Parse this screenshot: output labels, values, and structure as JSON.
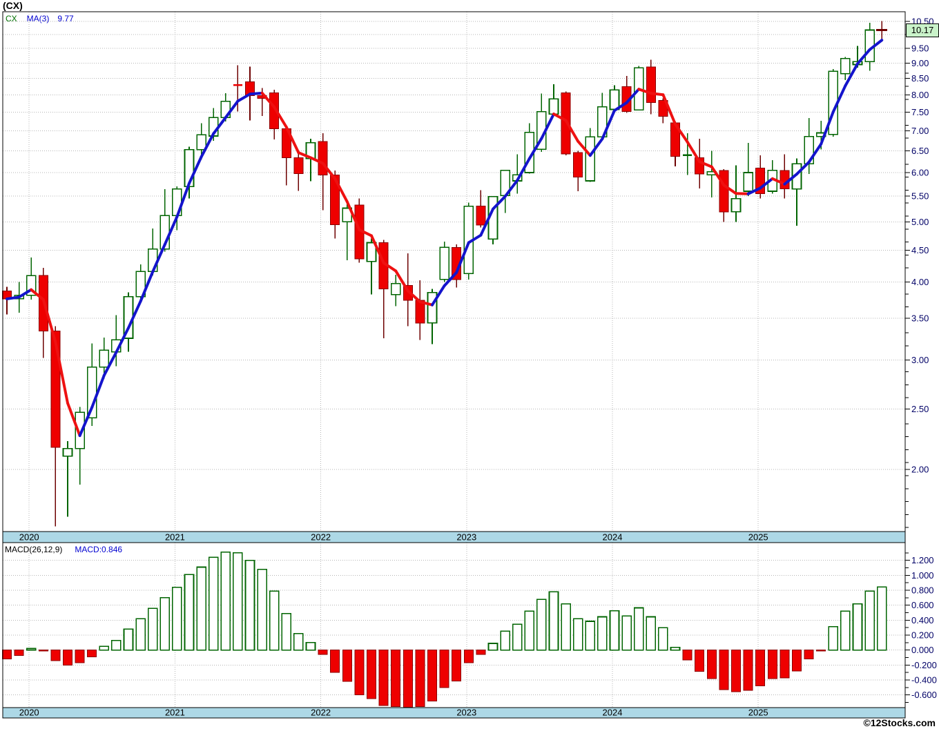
{
  "window": {
    "title": "(CX)"
  },
  "legend": {
    "symbol": "CX",
    "ma_label": "MA(3)",
    "ma_value": "9.77"
  },
  "macd_legend": {
    "label": "MACD(26,12,9)",
    "value_label": "MACD:0.846"
  },
  "price_badge": "10.17",
  "footer": "©12Stocks.com",
  "colors": {
    "up_stroke": "#006400",
    "up_fill": "#ffffff",
    "down_fill": "#ee0000",
    "down_stroke": "#8b0000",
    "down_wick": "#6e0000",
    "ma_up": "#1414cc",
    "ma_down": "#ee1111",
    "grid": "#b4b4b4",
    "border": "#000000",
    "band_fill": "#add8e6",
    "axis_text": "#000066",
    "year_text": "#000000",
    "badge_bg": "#c9f2c9",
    "cross": "#6e0000"
  },
  "chart_data": {
    "type": "candlestick",
    "symbol": "CX",
    "title": "(CX)",
    "ma_period": 3,
    "ma_last": 9.77,
    "macd_params": "26,12,9",
    "macd_last": 0.846,
    "price_axis": {
      "scale": "log",
      "label_min": 2.0,
      "label_max": 10.5,
      "step": 0.5,
      "last_price": 10.17
    },
    "macd_axis": {
      "scale": "linear",
      "label_min": -0.6,
      "label_max": 1.2,
      "step": 0.2,
      "minor_step": 0.1
    },
    "x_axis": {
      "years": [
        {
          "label": "2020",
          "month_index": 2
        },
        {
          "label": "2021",
          "month_index": 14
        },
        {
          "label": "2022",
          "month_index": 26
        },
        {
          "label": "2023",
          "month_index": 38
        },
        {
          "label": "2024",
          "month_index": 50
        },
        {
          "label": "2025",
          "month_index": 62
        }
      ]
    },
    "partial_last": true,
    "columns": [
      "month",
      "open",
      "high",
      "low",
      "close",
      "macd"
    ],
    "candles": [
      [
        "2019-11",
        3.87,
        3.93,
        3.55,
        3.76,
        -0.12
      ],
      [
        "2019-12",
        3.76,
        4.0,
        3.57,
        3.81,
        -0.07
      ],
      [
        "2020-01",
        3.81,
        4.38,
        3.75,
        4.1,
        0.02
      ],
      [
        "2020-02",
        4.1,
        4.22,
        3.02,
        3.34,
        -0.01
      ],
      [
        "2020-03",
        3.34,
        3.4,
        1.62,
        2.17,
        -0.14
      ],
      [
        "2020-04",
        2.1,
        2.22,
        1.68,
        2.16,
        -0.2
      ],
      [
        "2020-05",
        2.16,
        2.52,
        1.89,
        2.47,
        -0.17
      ],
      [
        "2020-06",
        2.42,
        3.19,
        2.35,
        2.92,
        -0.09
      ],
      [
        "2020-07",
        2.92,
        3.26,
        2.8,
        3.11,
        0.05
      ],
      [
        "2020-08",
        3.09,
        3.54,
        2.93,
        3.23,
        0.13
      ],
      [
        "2020-09",
        3.25,
        3.85,
        3.09,
        3.79,
        0.28
      ],
      [
        "2020-10",
        3.79,
        4.27,
        3.7,
        4.16,
        0.42
      ],
      [
        "2020-11",
        4.16,
        4.88,
        4.1,
        4.52,
        0.56
      ],
      [
        "2020-12",
        4.52,
        5.64,
        4.48,
        5.12,
        0.7
      ],
      [
        "2021-01",
        5.12,
        5.7,
        4.85,
        5.65,
        0.84
      ],
      [
        "2021-02",
        5.7,
        6.6,
        5.45,
        6.53,
        1.01
      ],
      [
        "2021-03",
        6.53,
        7.2,
        6.3,
        6.9,
        1.11
      ],
      [
        "2021-04",
        6.87,
        7.62,
        6.75,
        7.36,
        1.24
      ],
      [
        "2021-05",
        7.36,
        8.05,
        7.25,
        7.81,
        1.31
      ],
      [
        "2021-06",
        8.3,
        8.93,
        7.52,
        8.28,
        1.3
      ],
      [
        "2021-07",
        8.4,
        8.88,
        7.28,
        7.98,
        1.2
      ],
      [
        "2021-08",
        7.98,
        8.21,
        7.4,
        7.9,
        1.08
      ],
      [
        "2021-09",
        8.06,
        8.15,
        6.78,
        7.06,
        0.79
      ],
      [
        "2021-10",
        7.06,
        7.15,
        5.72,
        6.34,
        0.49
      ],
      [
        "2021-11",
        6.34,
        6.5,
        5.61,
        5.98,
        0.22
      ],
      [
        "2021-12",
        6.32,
        6.8,
        5.81,
        6.7,
        0.1
      ],
      [
        "2022-01",
        6.73,
        6.94,
        5.22,
        5.95,
        -0.06
      ],
      [
        "2022-02",
        5.95,
        6.05,
        4.7,
        4.95,
        -0.3
      ],
      [
        "2022-03",
        5.0,
        5.35,
        4.34,
        5.26,
        -0.42
      ],
      [
        "2022-04",
        5.32,
        5.45,
        4.3,
        4.36,
        -0.6
      ],
      [
        "2022-05",
        4.32,
        4.7,
        3.82,
        4.63,
        -0.65
      ],
      [
        "2022-06",
        4.63,
        4.68,
        3.25,
        3.9,
        -0.74
      ],
      [
        "2022-07",
        3.82,
        4.11,
        3.66,
        3.98,
        -0.755
      ],
      [
        "2022-08",
        3.95,
        4.45,
        3.4,
        3.74,
        -0.765
      ],
      [
        "2022-09",
        3.74,
        4.03,
        3.23,
        3.44,
        -0.755
      ],
      [
        "2022-10",
        3.44,
        3.9,
        3.18,
        3.85,
        -0.68
      ],
      [
        "2022-11",
        4.04,
        4.65,
        4.0,
        4.55,
        -0.5
      ],
      [
        "2022-12",
        4.55,
        4.6,
        3.92,
        4.04,
        -0.415
      ],
      [
        "2023-01",
        4.13,
        5.37,
        4.04,
        5.3,
        -0.17
      ],
      [
        "2023-02",
        5.3,
        5.62,
        4.9,
        4.94,
        -0.06
      ],
      [
        "2023-03",
        4.69,
        5.5,
        4.6,
        5.49,
        0.09
      ],
      [
        "2023-04",
        5.51,
        6.06,
        5.17,
        6.05,
        0.255
      ],
      [
        "2023-05",
        5.82,
        6.42,
        5.55,
        5.95,
        0.345
      ],
      [
        "2023-06",
        6.0,
        7.2,
        5.98,
        6.96,
        0.52
      ],
      [
        "2023-07",
        6.54,
        8.04,
        6.48,
        7.52,
        0.68
      ],
      [
        "2023-08",
        7.45,
        8.32,
        7.4,
        7.88,
        0.78
      ],
      [
        "2023-09",
        8.06,
        8.1,
        6.4,
        6.43,
        0.62
      ],
      [
        "2023-10",
        6.46,
        6.5,
        5.6,
        5.9,
        0.42
      ],
      [
        "2023-11",
        5.82,
        7.08,
        5.8,
        6.85,
        0.385
      ],
      [
        "2023-12",
        6.85,
        8.06,
        6.8,
        7.65,
        0.445
      ],
      [
        "2024-01",
        7.58,
        8.29,
        7.5,
        8.15,
        0.525
      ],
      [
        "2024-02",
        8.25,
        8.58,
        7.48,
        7.52,
        0.455
      ],
      [
        "2024-03",
        7.57,
        8.91,
        7.55,
        8.84,
        0.565
      ],
      [
        "2024-04",
        8.87,
        9.11,
        7.45,
        7.78,
        0.445
      ],
      [
        "2024-05",
        7.84,
        7.9,
        7.2,
        7.39,
        0.3
      ],
      [
        "2024-06",
        7.21,
        7.25,
        6.14,
        6.37,
        0.035
      ],
      [
        "2024-07",
        6.37,
        6.94,
        5.95,
        6.4,
        -0.13
      ],
      [
        "2024-08",
        6.34,
        6.8,
        5.66,
        5.97,
        -0.285
      ],
      [
        "2024-09",
        5.95,
        6.5,
        5.47,
        6.02,
        -0.38
      ],
      [
        "2024-10",
        6.05,
        6.08,
        5.0,
        5.19,
        -0.53
      ],
      [
        "2024-11",
        5.19,
        6.16,
        5.0,
        5.45,
        -0.555
      ],
      [
        "2024-12",
        5.6,
        6.7,
        5.5,
        6.0,
        -0.54
      ],
      [
        "2025-01",
        6.1,
        6.4,
        5.45,
        5.55,
        -0.48
      ],
      [
        "2025-02",
        5.6,
        6.28,
        5.55,
        6.05,
        -0.38
      ],
      [
        "2025-03",
        6.05,
        6.42,
        5.45,
        5.65,
        -0.37
      ],
      [
        "2025-04",
        5.65,
        6.32,
        4.93,
        6.2,
        -0.28
      ],
      [
        "2025-05",
        6.2,
        7.34,
        5.97,
        6.86,
        -0.12
      ],
      [
        "2025-06",
        6.86,
        7.27,
        6.54,
        6.95,
        -0.01
      ],
      [
        "2025-07",
        6.91,
        8.8,
        6.85,
        8.73,
        0.315
      ],
      [
        "2025-08",
        8.65,
        9.2,
        8.45,
        9.15,
        0.52
      ],
      [
        "2025-09",
        8.95,
        9.59,
        8.85,
        9.05,
        0.62
      ],
      [
        "2025-10",
        9.05,
        10.45,
        8.75,
        10.17,
        0.79
      ],
      [
        "2025-11",
        10.17,
        10.52,
        9.74,
        10.17,
        0.846
      ]
    ]
  }
}
